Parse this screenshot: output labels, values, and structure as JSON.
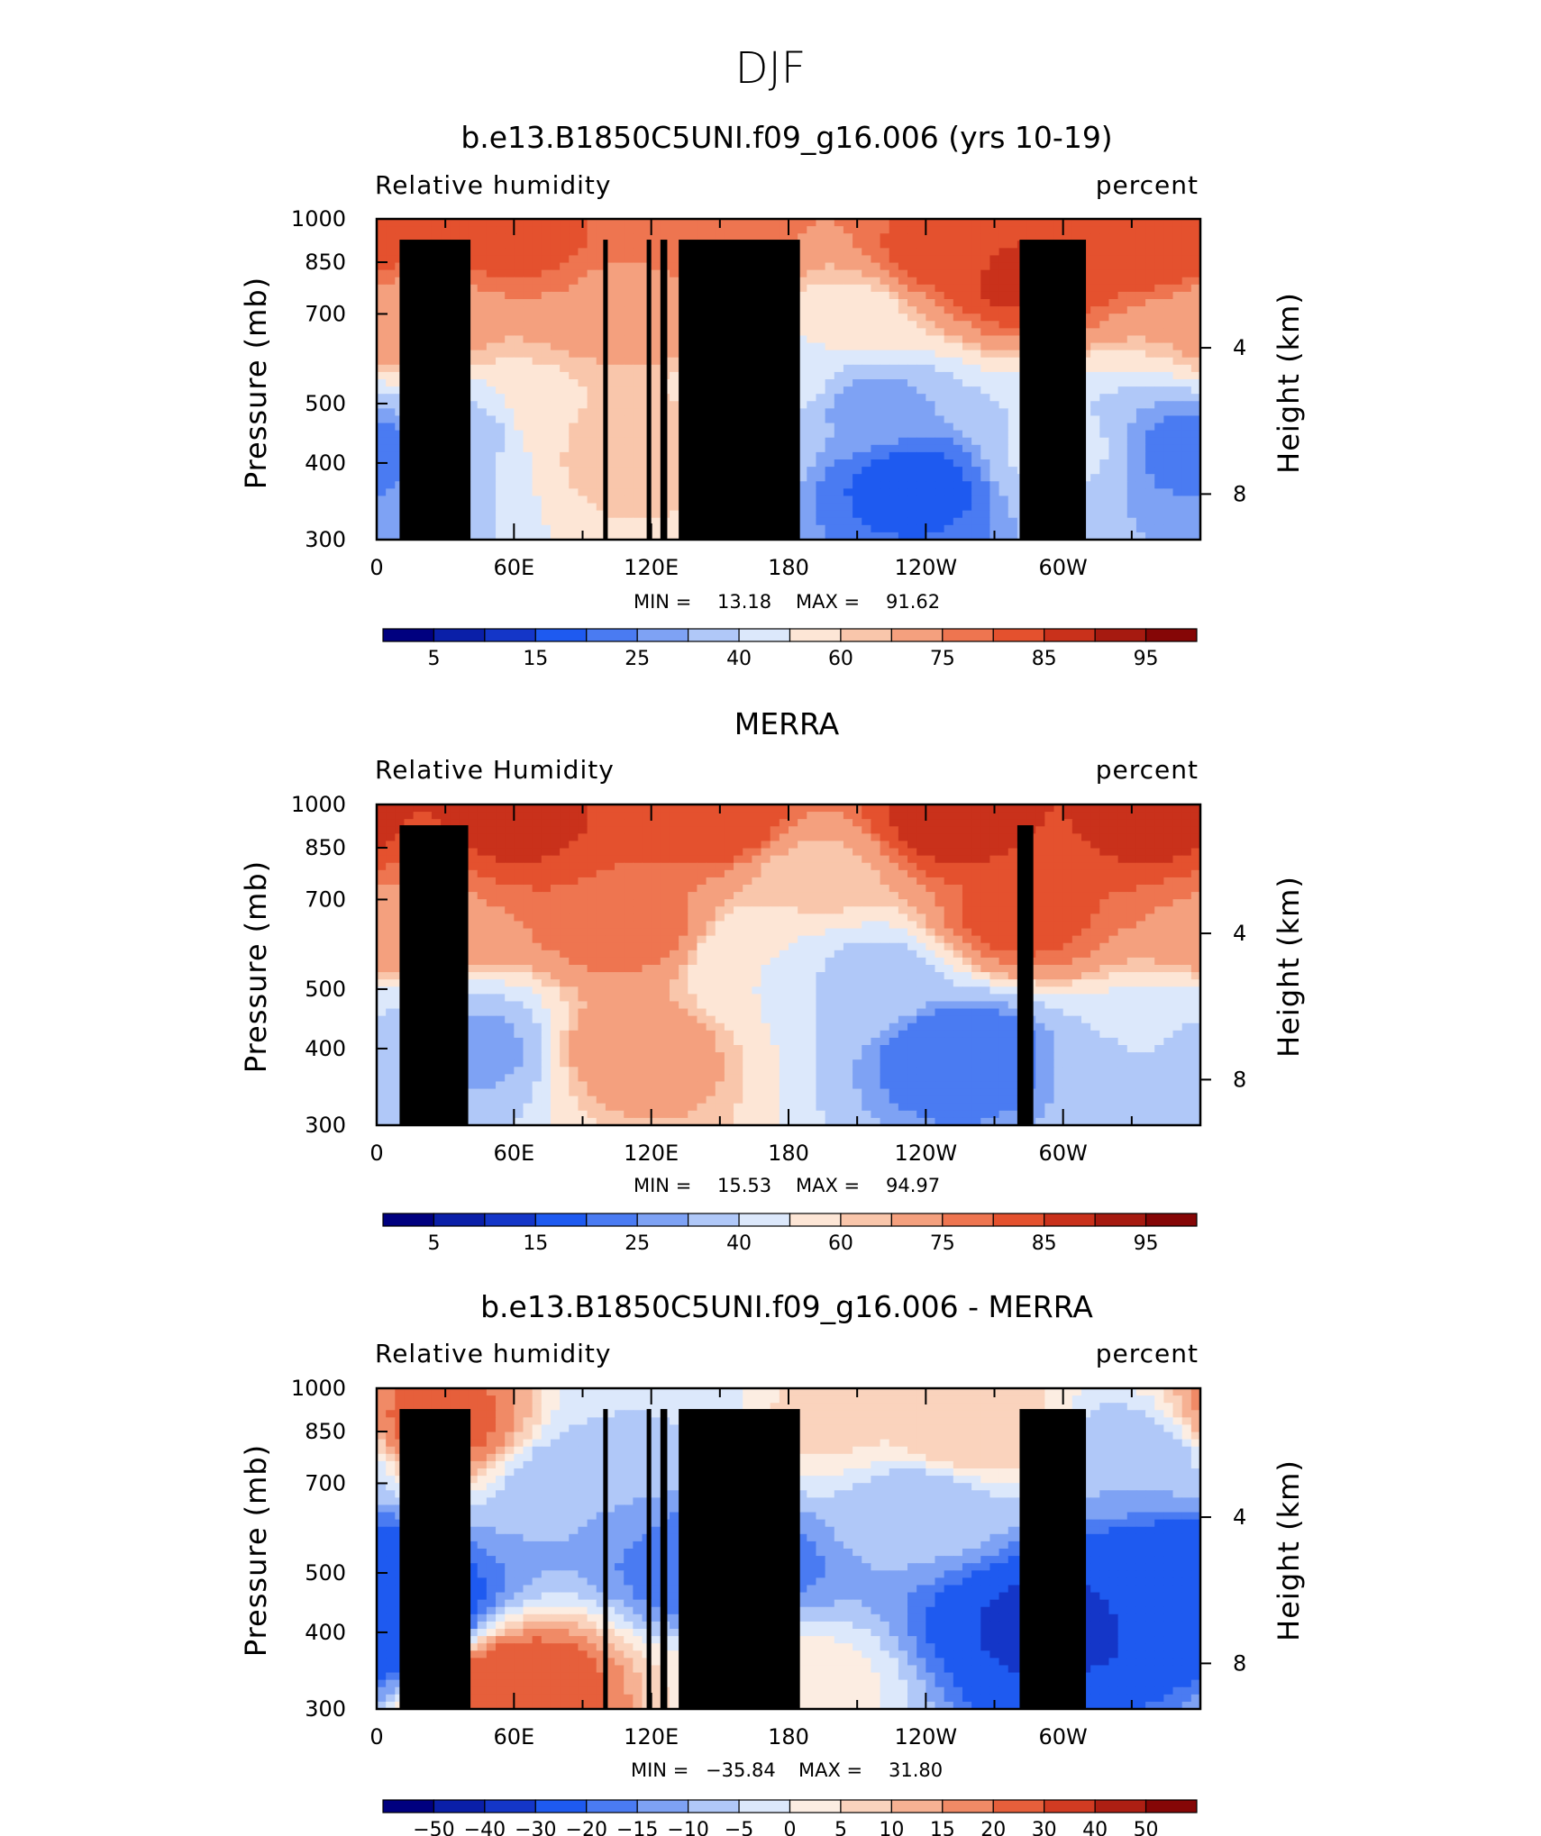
{
  "figure": {
    "title": "DJF"
  },
  "colors": {
    "abs_scale": [
      "#00007f",
      "#0a1fa8",
      "#1436c8",
      "#1e5af0",
      "#4a7bf2",
      "#7ea2f4",
      "#b0c8f8",
      "#dce8fb",
      "#fde6d6",
      "#f9c6ab",
      "#f4a07e",
      "#ee7550",
      "#e4512e",
      "#c9311b",
      "#a61a10",
      "#850606"
    ],
    "diff_scale": [
      "#00007f",
      "#0a1fa8",
      "#1436c8",
      "#1e5af0",
      "#4a7bf2",
      "#7ea2f4",
      "#b0c8f8",
      "#dce8fb",
      "#fcede2",
      "#fad3bd",
      "#f6b193",
      "#f08a66",
      "#e65f3b",
      "#d13b22",
      "#ad1f13",
      "#850606"
    ],
    "topography": "#000000"
  },
  "chart_data": [
    {
      "type": "heatmap",
      "title": "b.e13.B1850C5UNI.f09_g16.006 (yrs 10-19)",
      "left_label": "Relative humidity",
      "right_label": "percent",
      "ylabel": "Pressure (mb)",
      "ylabel_right": "Height (km)",
      "x_ticks": [
        "0",
        "60E",
        "120E",
        "180",
        "120W",
        "60W"
      ],
      "x_range": [
        0,
        360
      ],
      "y_ticks": [
        "300",
        "400",
        "500",
        "700",
        "850",
        "1000"
      ],
      "y_range_mb": [
        1000,
        300
      ],
      "y_right_ticks": [
        "8",
        "4"
      ],
      "stats": {
        "min_label": "MIN =",
        "min": "13.18",
        "max_label": "MAX =",
        "max": "91.62"
      },
      "colorbar_labels": [
        "5",
        "15",
        "25",
        "40",
        "60",
        "75",
        "85",
        "95"
      ],
      "colorbar_levels": [
        5,
        10,
        15,
        20,
        25,
        30,
        40,
        50,
        60,
        65,
        75,
        80,
        85,
        90,
        95
      ],
      "topography_blocks_lon": [
        [
          10,
          41
        ],
        [
          99,
          101
        ],
        [
          118,
          120
        ],
        [
          124,
          127
        ],
        [
          132,
          185
        ],
        [
          281,
          310
        ]
      ],
      "features": [
        {
          "lon": 235,
          "p": 370,
          "value": 18
        },
        {
          "lon": 355,
          "p": 420,
          "value": 22
        },
        {
          "lon": 5,
          "p": 400,
          "value": 25
        },
        {
          "lon": 40,
          "p": 450,
          "value": 38
        },
        {
          "lon": 300,
          "p": 420,
          "value": 42
        },
        {
          "lon": 215,
          "p": 500,
          "value": 28
        },
        {
          "lon": 180,
          "p": 560,
          "value": 45
        },
        {
          "lon": 110,
          "p": 420,
          "value": 65
        },
        {
          "lon": 80,
          "p": 480,
          "value": 60
        },
        {
          "lon": 18,
          "p": 650,
          "value": 68
        },
        {
          "lon": 110,
          "p": 720,
          "value": 74
        },
        {
          "lon": 245,
          "p": 860,
          "value": 82
        },
        {
          "lon": 280,
          "p": 800,
          "value": 86
        },
        {
          "lon": 60,
          "p": 930,
          "value": 82
        },
        {
          "lon": 150,
          "p": 920,
          "value": 78
        },
        {
          "lon": 340,
          "p": 930,
          "value": 84
        },
        {
          "lon": 210,
          "p": 700,
          "value": 58
        }
      ]
    },
    {
      "type": "heatmap",
      "title": "MERRA",
      "left_label": "Relative Humidity",
      "right_label": "percent",
      "ylabel": "Pressure (mb)",
      "ylabel_right": "Height (km)",
      "x_ticks": [
        "0",
        "60E",
        "120E",
        "180",
        "120W",
        "60W"
      ],
      "x_range": [
        0,
        360
      ],
      "y_ticks": [
        "300",
        "400",
        "500",
        "700",
        "850",
        "1000"
      ],
      "y_range_mb": [
        1000,
        300
      ],
      "y_right_ticks": [
        "8",
        "4"
      ],
      "stats": {
        "min_label": "MIN =",
        "min": "15.53",
        "max_label": "MAX =",
        "max": "94.97"
      },
      "colorbar_labels": [
        "5",
        "15",
        "25",
        "40",
        "60",
        "75",
        "85",
        "95"
      ],
      "colorbar_levels": [
        5,
        10,
        15,
        20,
        25,
        30,
        40,
        50,
        60,
        65,
        75,
        80,
        85,
        90,
        95
      ],
      "topography_blocks_lon": [
        [
          10,
          40
        ],
        [
          280,
          287
        ]
      ],
      "features": [
        {
          "lon": 255,
          "p": 400,
          "value": 20
        },
        {
          "lon": 43,
          "p": 400,
          "value": 28
        },
        {
          "lon": 345,
          "p": 400,
          "value": 40
        },
        {
          "lon": 215,
          "p": 520,
          "value": 35
        },
        {
          "lon": 170,
          "p": 560,
          "value": 50
        },
        {
          "lon": 110,
          "p": 640,
          "value": 80
        },
        {
          "lon": 18,
          "p": 650,
          "value": 74
        },
        {
          "lon": 280,
          "p": 650,
          "value": 82
        },
        {
          "lon": 110,
          "p": 400,
          "value": 70
        },
        {
          "lon": 150,
          "p": 930,
          "value": 84
        },
        {
          "lon": 60,
          "p": 930,
          "value": 86
        },
        {
          "lon": 250,
          "p": 930,
          "value": 87
        },
        {
          "lon": 340,
          "p": 930,
          "value": 86
        },
        {
          "lon": 190,
          "p": 760,
          "value": 62
        }
      ]
    },
    {
      "type": "heatmap",
      "title": "b.e13.B1850C5UNI.f09_g16.006 - MERRA",
      "left_label": "Relative humidity",
      "right_label": "percent",
      "ylabel": "Pressure (mb)",
      "ylabel_right": "Height (km)",
      "x_ticks": [
        "0",
        "60E",
        "120E",
        "180",
        "120W",
        "60W"
      ],
      "x_range": [
        0,
        360
      ],
      "y_ticks": [
        "300",
        "400",
        "500",
        "700",
        "850",
        "1000"
      ],
      "y_range_mb": [
        1000,
        300
      ],
      "y_right_ticks": [
        "8",
        "4"
      ],
      "stats": {
        "min_label": "MIN =",
        "min": "−35.84",
        "max_label": "MAX =",
        "max": "31.80"
      },
      "colorbar_labels": [
        "−50",
        "−40",
        "−30",
        "−20",
        "−15",
        "−10",
        "−5",
        "0",
        "5",
        "10",
        "15",
        "20",
        "30",
        "40",
        "50"
      ],
      "colorbar_levels": [
        -50,
        -40,
        -30,
        -20,
        -15,
        -10,
        -5,
        0,
        5,
        10,
        15,
        20,
        30,
        40,
        50
      ],
      "topography_blocks_lon": [
        [
          10,
          41
        ],
        [
          99,
          101
        ],
        [
          118,
          120
        ],
        [
          124,
          127
        ],
        [
          132,
          185
        ],
        [
          281,
          310
        ]
      ],
      "features": [
        {
          "lon": 8,
          "p": 420,
          "value": -30
        },
        {
          "lon": 297,
          "p": 420,
          "value": -32
        },
        {
          "lon": 345,
          "p": 500,
          "value": -25
        },
        {
          "lon": 150,
          "p": 520,
          "value": -20
        },
        {
          "lon": 60,
          "p": 330,
          "value": 25
        },
        {
          "lon": 28,
          "p": 880,
          "value": 22
        },
        {
          "lon": 90,
          "p": 700,
          "value": -10
        },
        {
          "lon": 240,
          "p": 650,
          "value": -8
        },
        {
          "lon": 200,
          "p": 900,
          "value": 6
        },
        {
          "lon": 330,
          "p": 760,
          "value": -10
        },
        {
          "lon": 175,
          "p": 330,
          "value": 3
        },
        {
          "lon": 260,
          "p": 840,
          "value": 10
        },
        {
          "lon": 120,
          "p": 900,
          "value": -5
        }
      ]
    }
  ]
}
